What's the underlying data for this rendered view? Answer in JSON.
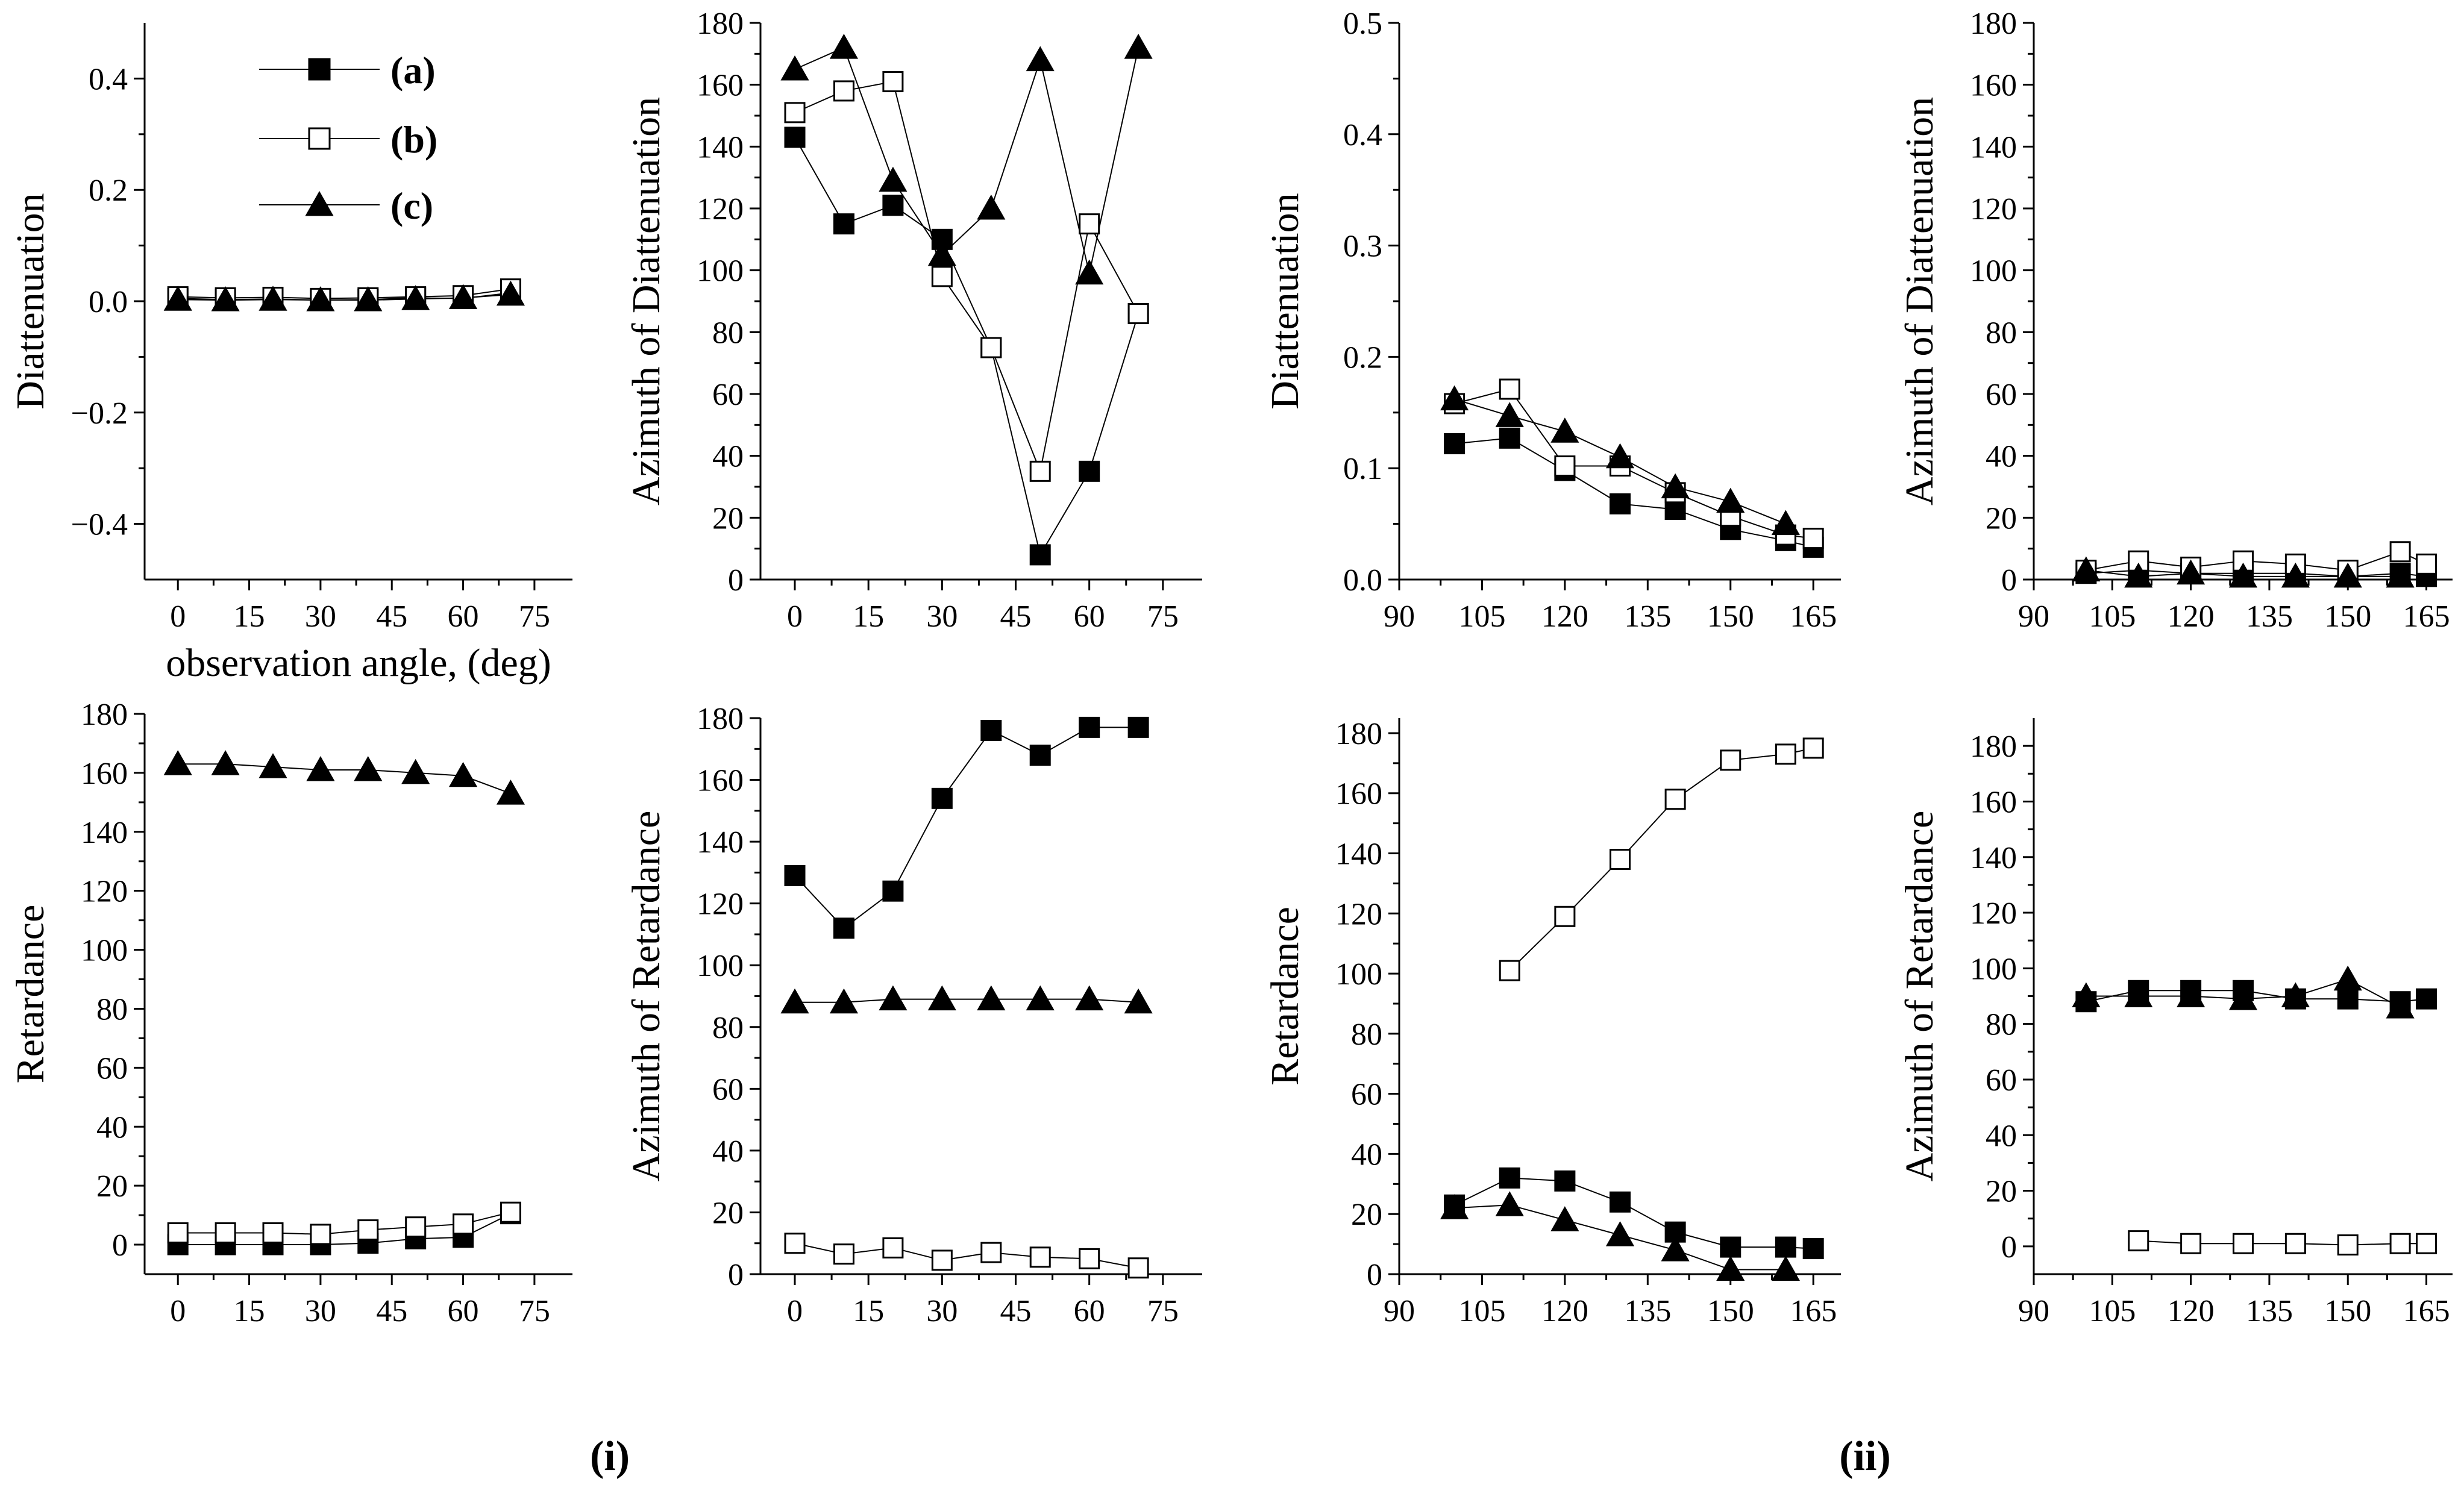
{
  "chart_data": [
    {
      "type": "scatter",
      "xlim": [
        -7,
        83
      ],
      "ylim": [
        -0.5,
        0.5
      ],
      "xticks": [
        0,
        15,
        30,
        45,
        60,
        75
      ],
      "yticks": [
        -0.4,
        -0.2,
        0.0,
        0.2,
        0.4
      ],
      "xtick_labels": [
        "0",
        "15",
        "30",
        "45",
        "60",
        "75"
      ],
      "ytick_labels": [
        "−0.4",
        "−0.2",
        "0.0",
        "0.2",
        "0.4"
      ],
      "ylabel": "Diattenuation",
      "xlabel": "observation angle, (deg)",
      "series": [
        {
          "name": "(a)",
          "marker": "filled-square",
          "x": [
            0,
            10,
            20,
            30,
            40,
            50,
            60,
            70
          ],
          "y": [
            0.005,
            0.003,
            0.004,
            0.002,
            0.003,
            0.006,
            0.005,
            0.015
          ]
        },
        {
          "name": "(b)",
          "marker": "open-square",
          "x": [
            0,
            10,
            20,
            30,
            40,
            50,
            60,
            70
          ],
          "y": [
            0.008,
            0.006,
            0.007,
            0.005,
            0.006,
            0.008,
            0.01,
            0.022
          ]
        },
        {
          "name": "(c)",
          "marker": "filled-triangle",
          "x": [
            0,
            10,
            20,
            30,
            40,
            50,
            60,
            70
          ],
          "y": [
            0.003,
            0.002,
            0.003,
            0.002,
            0.002,
            0.004,
            0.006,
            0.012
          ]
        }
      ]
    },
    {
      "type": "scatter",
      "xlim": [
        -7,
        83
      ],
      "ylim": [
        0,
        180
      ],
      "xticks": [
        0,
        15,
        30,
        45,
        60,
        75
      ],
      "yticks": [
        0,
        20,
        40,
        60,
        80,
        100,
        120,
        140,
        160,
        180
      ],
      "xtick_labels": [
        "0",
        "15",
        "30",
        "45",
        "60",
        "75"
      ],
      "ytick_labels": [
        "0",
        "20",
        "40",
        "60",
        "80",
        "100",
        "120",
        "140",
        "160",
        "180"
      ],
      "ylabel": "Azimuth of Diattenuation",
      "series": [
        {
          "name": "(a)",
          "marker": "filled-square",
          "x": [
            0,
            10,
            20,
            30,
            40,
            50,
            60,
            70
          ],
          "y": [
            143,
            115,
            121,
            110,
            75,
            8,
            35,
            86
          ]
        },
        {
          "name": "(b)",
          "marker": "open-square",
          "x": [
            0,
            10,
            20,
            30,
            40,
            50,
            60,
            70
          ],
          "y": [
            151,
            158,
            161,
            98,
            75,
            35,
            115,
            86
          ]
        },
        {
          "name": "(c)",
          "marker": "filled-triangle",
          "x": [
            0,
            10,
            20,
            30,
            40,
            50,
            60,
            70
          ],
          "y": [
            165,
            172,
            129,
            105,
            120,
            168,
            99,
            172
          ]
        }
      ]
    },
    {
      "type": "scatter",
      "xlim": [
        90,
        170
      ],
      "ylim": [
        0,
        0.5
      ],
      "xticks": [
        90,
        105,
        120,
        135,
        150,
        165
      ],
      "yticks": [
        0,
        0.1,
        0.2,
        0.3,
        0.4,
        0.5
      ],
      "xtick_labels": [
        "90",
        "105",
        "120",
        "135",
        "150",
        "165"
      ],
      "ytick_labels": [
        "0.0",
        "0.1",
        "0.2",
        "0.3",
        "0.4",
        "0.5"
      ],
      "ylabel": "Diattenuation",
      "series": [
        {
          "name": "(a)",
          "marker": "filled-square",
          "x": [
            100,
            110,
            120,
            130,
            140,
            150,
            160,
            165
          ],
          "y": [
            0.122,
            0.127,
            0.098,
            0.068,
            0.063,
            0.045,
            0.035,
            0.029
          ]
        },
        {
          "name": "(b)",
          "marker": "open-square",
          "x": [
            100,
            110,
            120,
            130,
            140,
            150,
            160,
            165
          ],
          "y": [
            0.158,
            0.171,
            0.102,
            0.102,
            0.078,
            0.057,
            0.04,
            0.037
          ]
        },
        {
          "name": "(c)",
          "marker": "filled-triangle",
          "x": [
            100,
            110,
            120,
            130,
            140,
            150,
            160
          ],
          "y": [
            0.162,
            0.147,
            0.133,
            0.11,
            0.083,
            0.07,
            0.05
          ]
        }
      ]
    },
    {
      "type": "scatter",
      "xlim": [
        90,
        170
      ],
      "ylim": [
        0,
        180
      ],
      "xticks": [
        90,
        105,
        120,
        135,
        150,
        165
      ],
      "yticks": [
        0,
        20,
        40,
        60,
        80,
        100,
        120,
        140,
        160,
        180
      ],
      "xtick_labels": [
        "90",
        "105",
        "120",
        "135",
        "150",
        "165"
      ],
      "ytick_labels": [
        "0",
        "20",
        "40",
        "60",
        "80",
        "100",
        "120",
        "140",
        "160",
        "180"
      ],
      "ylabel": "Azimuth of Diattenuation",
      "series": [
        {
          "name": "(a)",
          "marker": "filled-square",
          "x": [
            100,
            110,
            120,
            130,
            140,
            150,
            160,
            165
          ],
          "y": [
            2,
            3,
            2,
            2,
            2,
            1,
            2,
            1
          ]
        },
        {
          "name": "(b)",
          "marker": "open-square",
          "x": [
            100,
            110,
            120,
            130,
            140,
            150,
            160,
            165
          ],
          "y": [
            3,
            6,
            4,
            6,
            5,
            3,
            9,
            5
          ]
        },
        {
          "name": "(c)",
          "marker": "filled-triangle",
          "x": [
            100,
            110,
            120,
            130,
            140,
            150,
            160
          ],
          "y": [
            3,
            1,
            2,
            1,
            1,
            1,
            1
          ]
        }
      ]
    },
    {
      "type": "scatter",
      "xlim": [
        -7,
        83
      ],
      "ylim": [
        -10,
        180
      ],
      "xticks": [
        0,
        15,
        30,
        45,
        60,
        75
      ],
      "yticks": [
        0,
        20,
        40,
        60,
        80,
        100,
        120,
        140,
        160,
        180
      ],
      "xtick_labels": [
        "0",
        "15",
        "30",
        "45",
        "60",
        "75"
      ],
      "ytick_labels": [
        "0",
        "20",
        "40",
        "60",
        "80",
        "100",
        "120",
        "140",
        "160",
        "180"
      ],
      "ylabel": "Retardance",
      "series": [
        {
          "name": "(a)",
          "marker": "filled-square",
          "x": [
            0,
            10,
            20,
            30,
            40,
            50,
            60,
            70
          ],
          "y": [
            0,
            0,
            0,
            0,
            0.5,
            2,
            2.5,
            10.5
          ]
        },
        {
          "name": "(b)",
          "marker": "open-square",
          "x": [
            0,
            10,
            20,
            30,
            40,
            50,
            60,
            70
          ],
          "y": [
            4,
            4,
            4,
            3.5,
            5,
            6,
            7,
            11
          ]
        },
        {
          "name": "(c)",
          "marker": "filled-triangle",
          "x": [
            0,
            10,
            20,
            30,
            40,
            50,
            60,
            70
          ],
          "y": [
            163,
            163,
            162,
            161,
            161,
            160,
            159,
            153
          ]
        }
      ]
    },
    {
      "type": "scatter",
      "xlim": [
        -7,
        83
      ],
      "ylim": [
        0,
        180
      ],
      "xticks": [
        0,
        15,
        30,
        45,
        60,
        75
      ],
      "yticks": [
        0,
        20,
        40,
        60,
        80,
        100,
        120,
        140,
        160,
        180
      ],
      "xtick_labels": [
        "0",
        "15",
        "30",
        "45",
        "60",
        "75"
      ],
      "ytick_labels": [
        "0",
        "20",
        "40",
        "60",
        "80",
        "100",
        "120",
        "140",
        "160",
        "180"
      ],
      "ylabel": "Azimuth of Retardance",
      "series": [
        {
          "name": "(a)",
          "marker": "filled-square",
          "x": [
            0,
            10,
            20,
            30,
            40,
            50,
            60,
            70
          ],
          "y": [
            129,
            112,
            124,
            154,
            176,
            168,
            177,
            177
          ]
        },
        {
          "name": "(b)",
          "marker": "open-square",
          "x": [
            0,
            10,
            20,
            30,
            40,
            50,
            60,
            70
          ],
          "y": [
            10,
            6.5,
            8.5,
            4.5,
            7,
            5.5,
            5,
            2
          ]
        },
        {
          "name": "(c)",
          "marker": "filled-triangle",
          "x": [
            0,
            10,
            20,
            30,
            40,
            50,
            60,
            70
          ],
          "y": [
            88,
            88,
            89,
            89,
            89,
            89,
            89,
            88
          ]
        }
      ]
    },
    {
      "type": "scatter",
      "xlim": [
        90,
        170
      ],
      "ylim": [
        0,
        185
      ],
      "xticks": [
        90,
        105,
        120,
        135,
        150,
        165
      ],
      "yticks": [
        0,
        20,
        40,
        60,
        80,
        100,
        120,
        140,
        160,
        180
      ],
      "xtick_labels": [
        "90",
        "105",
        "120",
        "135",
        "150",
        "165"
      ],
      "ytick_labels": [
        "0",
        "20",
        "40",
        "60",
        "80",
        "100",
        "120",
        "140",
        "160",
        "180"
      ],
      "ylabel": "Retardance",
      "series": [
        {
          "name": "(a)",
          "marker": "filled-square",
          "x": [
            100,
            110,
            120,
            130,
            140,
            150,
            160,
            165
          ],
          "y": [
            23,
            32,
            31,
            24,
            14,
            9,
            9,
            8.5
          ]
        },
        {
          "name": "(b)",
          "marker": "open-square",
          "x": [
            110,
            120,
            130,
            140,
            150,
            160,
            165
          ],
          "y": [
            101,
            119,
            138,
            158,
            171,
            173,
            175
          ]
        },
        {
          "name": "(c)",
          "marker": "filled-triangle",
          "x": [
            100,
            110,
            120,
            130,
            140,
            150,
            160
          ],
          "y": [
            22,
            23,
            18,
            13,
            8,
            1.5,
            1.5
          ]
        }
      ]
    },
    {
      "type": "scatter",
      "xlim": [
        90,
        170
      ],
      "ylim": [
        -10,
        190
      ],
      "xticks": [
        90,
        105,
        120,
        135,
        150,
        165
      ],
      "yticks": [
        0,
        20,
        40,
        60,
        80,
        100,
        120,
        140,
        160,
        180
      ],
      "xtick_labels": [
        "90",
        "105",
        "120",
        "135",
        "150",
        "165"
      ],
      "ytick_labels": [
        "0",
        "20",
        "40",
        "60",
        "80",
        "100",
        "120",
        "140",
        "160",
        "180"
      ],
      "ylabel": "Azimuth of Retardance",
      "series": [
        {
          "name": "(a)",
          "marker": "filled-square",
          "x": [
            100,
            110,
            120,
            130,
            140,
            150,
            160,
            165
          ],
          "y": [
            88,
            92,
            92,
            92,
            89,
            89,
            88,
            89
          ]
        },
        {
          "name": "(b)",
          "marker": "open-square",
          "x": [
            110,
            120,
            130,
            140,
            150,
            160,
            165
          ],
          "y": [
            2,
            1,
            1,
            1,
            0.5,
            1,
            1
          ]
        },
        {
          "name": "(c)",
          "marker": "filled-triangle",
          "x": [
            100,
            110,
            120,
            130,
            140,
            150,
            160
          ],
          "y": [
            90,
            90,
            90,
            89,
            90,
            96,
            86
          ]
        }
      ]
    }
  ],
  "legend": {
    "items": [
      {
        "label": "(a)",
        "marker": "filled-square"
      },
      {
        "label": "(b)",
        "marker": "open-square"
      },
      {
        "label": "(c)",
        "marker": "filled-triangle"
      }
    ]
  },
  "captions": [
    "(i)",
    "(ii)"
  ]
}
